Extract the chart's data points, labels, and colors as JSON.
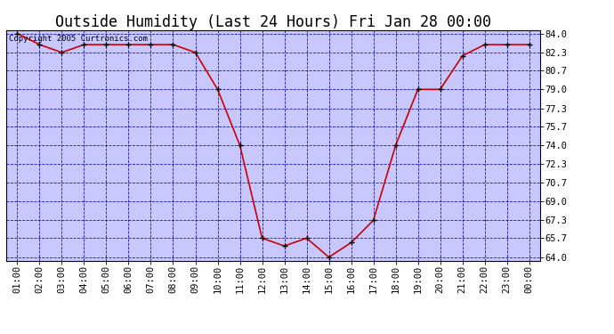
{
  "title": "Outside Humidity (Last 24 Hours) Fri Jan 28 00:00",
  "copyright": "Copyright 2005 Curtronics.com",
  "x_labels": [
    "01:00",
    "02:00",
    "03:00",
    "04:00",
    "05:00",
    "06:00",
    "07:00",
    "08:00",
    "09:00",
    "10:00",
    "11:00",
    "12:00",
    "13:00",
    "14:00",
    "15:00",
    "16:00",
    "17:00",
    "18:00",
    "19:00",
    "20:00",
    "21:00",
    "22:00",
    "23:00",
    "00:00"
  ],
  "x_values": [
    1,
    2,
    3,
    4,
    5,
    6,
    7,
    8,
    9,
    10,
    11,
    12,
    13,
    14,
    15,
    16,
    17,
    18,
    19,
    20,
    21,
    22,
    23,
    24
  ],
  "y_values": [
    84.0,
    83.0,
    82.3,
    83.0,
    83.0,
    83.0,
    83.0,
    83.0,
    82.3,
    79.0,
    74.0,
    65.7,
    65.0,
    65.7,
    64.0,
    65.3,
    67.3,
    74.0,
    79.0,
    79.0,
    82.0,
    83.0,
    83.0,
    83.0
  ],
  "y_ticks": [
    64.0,
    65.7,
    67.3,
    69.0,
    70.7,
    72.3,
    74.0,
    75.7,
    77.3,
    79.0,
    80.7,
    82.3,
    84.0
  ],
  "ylim": [
    63.7,
    84.3
  ],
  "line_color": "#cc0000",
  "marker_color": "#000000",
  "plot_bg_color": "#c8c8ff",
  "fig_bg_color": "#ffffff",
  "grid_color": "#0000bb",
  "title_fontsize": 12,
  "tick_fontsize": 7.5,
  "copyright_fontsize": 6.5,
  "xlim": [
    0.5,
    24.5
  ]
}
